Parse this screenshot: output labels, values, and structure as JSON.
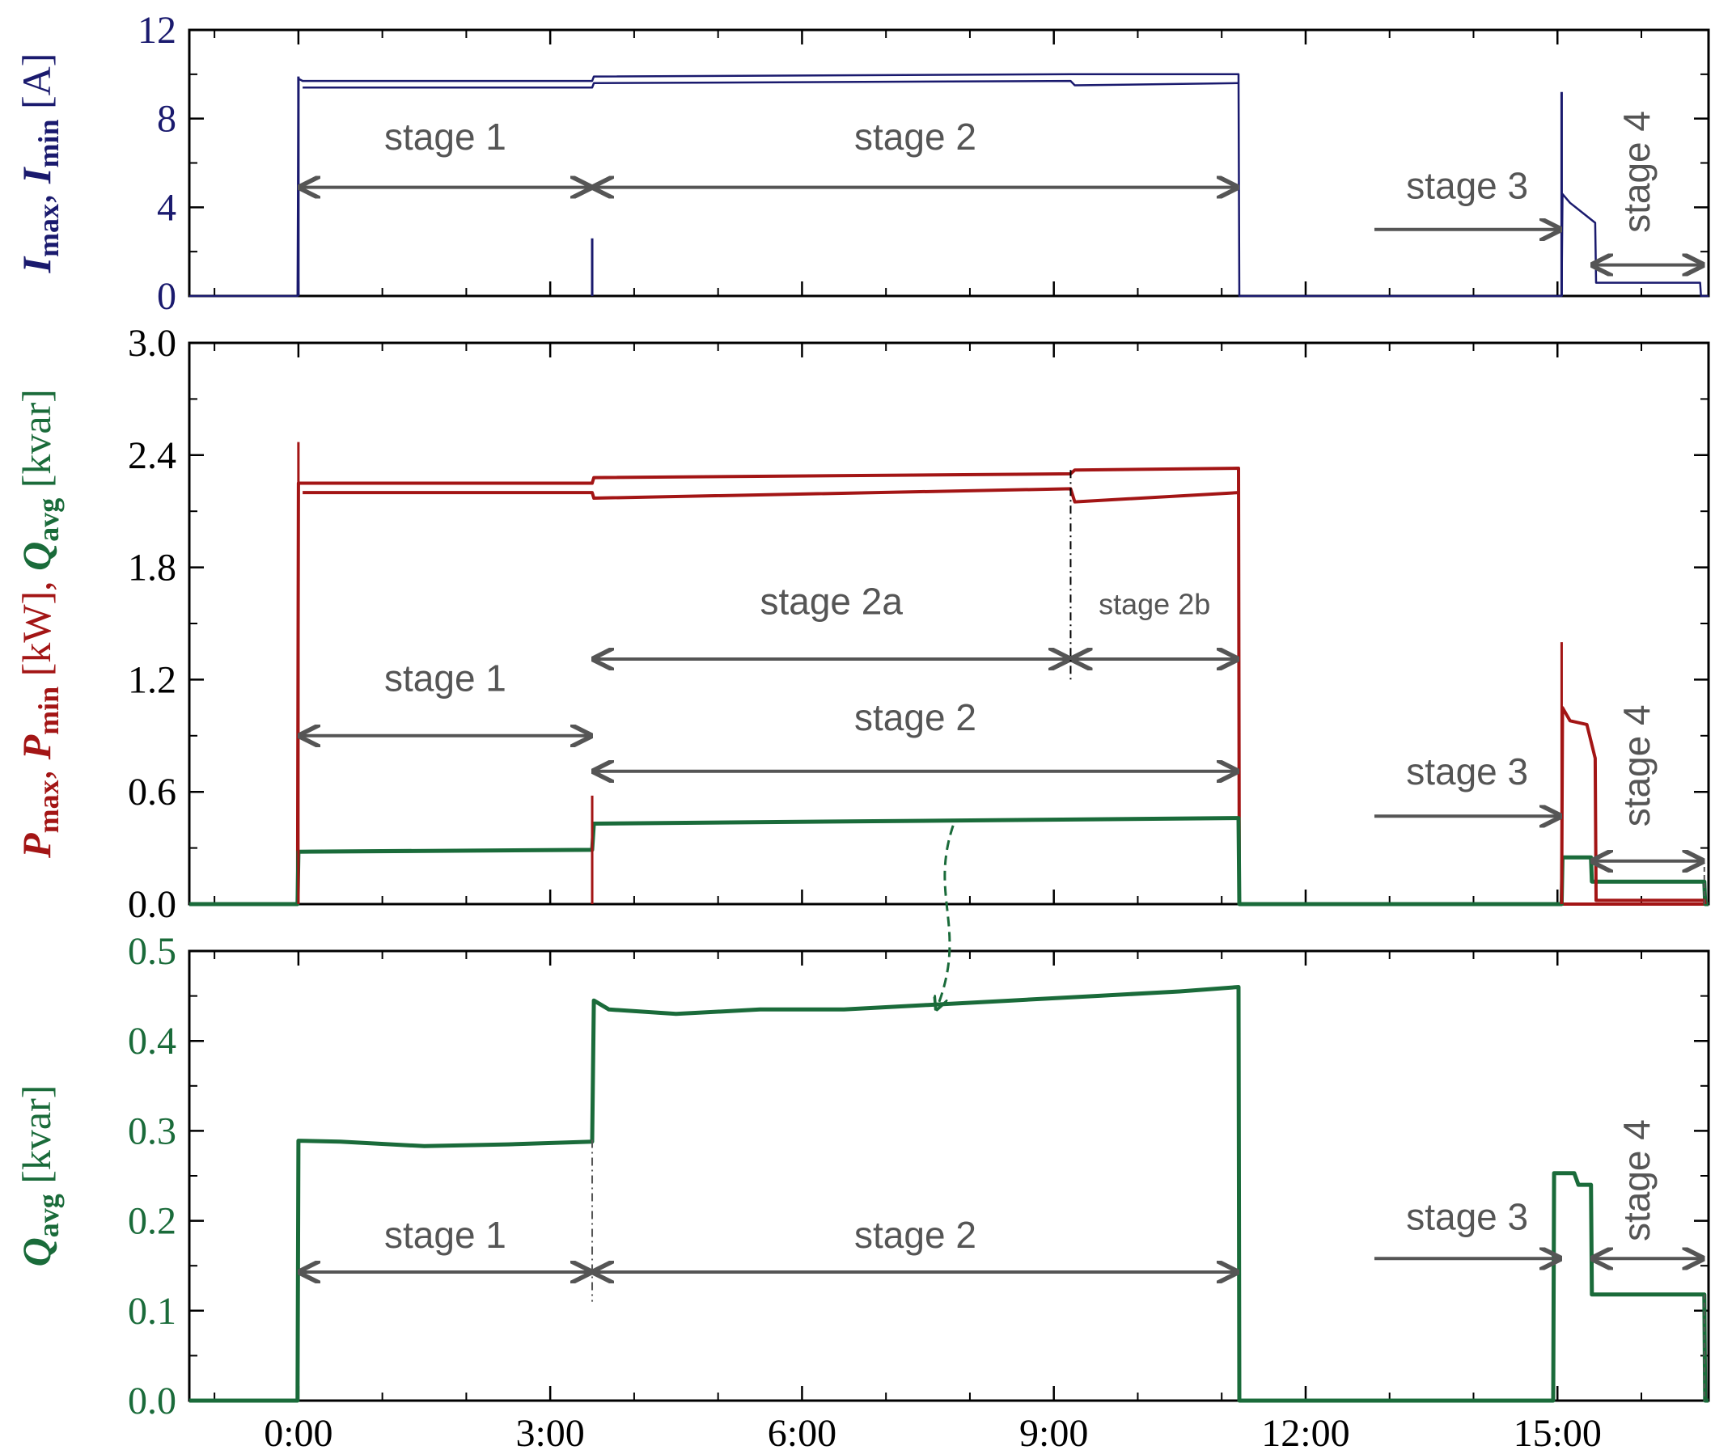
{
  "chart_data": [
    {
      "type": "line",
      "ylabel": {
        "parts": [
          {
            "t": "I",
            "k": "sym"
          },
          {
            "t": "max",
            "k": "sub"
          },
          {
            "t": ", ",
            "k": "n"
          },
          {
            "t": "I",
            "k": "sym"
          },
          {
            "t": "min",
            "k": "sub"
          },
          {
            "t": " [A]",
            "k": "n"
          }
        ]
      },
      "ylim": [
        0,
        12
      ],
      "yticks": [
        "0",
        "4",
        "8",
        "12"
      ],
      "color": "#1a1a6e",
      "series": [
        {
          "role": "max",
          "x": [
            -1.3,
            -0.01,
            0,
            0.05,
            3.5,
            3.52,
            9.2,
            11.2,
            11.21,
            11.3,
            15.05,
            15.06,
            15.15,
            15.45,
            15.46,
            16.7,
            16.71,
            16.8
          ],
          "y": [
            0,
            0,
            9.8,
            9.7,
            9.7,
            9.9,
            10.0,
            10.0,
            0,
            0,
            0,
            4.6,
            4.2,
            3.3,
            0.6,
            0.6,
            0,
            0
          ]
        },
        {
          "role": "min",
          "x": [
            0.05,
            3.5,
            3.52,
            9.2,
            9.25,
            11.2
          ],
          "y": [
            9.4,
            9.4,
            9.6,
            9.7,
            9.5,
            9.6
          ]
        }
      ],
      "spikes": [
        {
          "x": 0,
          "y": 9.9
        },
        {
          "x": 3.5,
          "y": 2.6
        },
        {
          "x": 15.05,
          "y": 9.2
        }
      ],
      "annotations": [
        {
          "label": "stage 1",
          "x0": 0,
          "x1": 3.5,
          "y_arrow": 4.9,
          "y_text": 6.6,
          "kind": "both"
        },
        {
          "label": "stage 2",
          "x0": 3.5,
          "x1": 11.2,
          "y_arrow": 4.9,
          "y_text": 6.6,
          "kind": "both"
        },
        {
          "label": "stage 3",
          "x0": 12.8,
          "x1": 15.05,
          "y_arrow": 3.0,
          "y_text": 4.4,
          "kind": "right"
        },
        {
          "label": "stage 4",
          "x0": 15.4,
          "x1": 16.75,
          "y_arrow": 1.4,
          "y_text": 5.6,
          "kind": "both",
          "rotated": true
        }
      ]
    },
    {
      "type": "line",
      "ylabel": {
        "parts": [
          {
            "t": "P",
            "k": "sym",
            "c": "#a31515"
          },
          {
            "t": "max",
            "k": "sub",
            "c": "#a31515"
          },
          {
            "t": ", ",
            "k": "n",
            "c": "#a31515"
          },
          {
            "t": "P",
            "k": "sym",
            "c": "#a31515"
          },
          {
            "t": "min",
            "k": "sub",
            "c": "#a31515"
          },
          {
            "t": " [kW], ",
            "k": "n",
            "c": "#a31515"
          },
          {
            "t": "Q",
            "k": "sym",
            "c": "#1a6b3a"
          },
          {
            "t": "avg",
            "k": "sub",
            "c": "#1a6b3a"
          },
          {
            "t": " [kvar]",
            "k": "n",
            "c": "#1a6b3a"
          }
        ]
      },
      "ylim": [
        0,
        3.0
      ],
      "yticks": [
        "0.0",
        "0.6",
        "1.2",
        "1.8",
        "2.4",
        "3.0"
      ],
      "series": [
        {
          "role": "P_max",
          "color": "#a31515",
          "x": [
            -1.3,
            -0.01,
            0,
            0.05,
            3.5,
            3.52,
            9.2,
            9.25,
            11.2,
            11.21,
            16.8
          ],
          "y": [
            0,
            0,
            2.25,
            2.25,
            2.25,
            2.28,
            2.3,
            2.32,
            2.33,
            0,
            0
          ]
        },
        {
          "role": "P_min",
          "color": "#a31515",
          "x": [
            0.05,
            3.5,
            3.52,
            9.2,
            9.25,
            11.2
          ],
          "y": [
            2.2,
            2.2,
            2.17,
            2.22,
            2.15,
            2.2
          ]
        },
        {
          "role": "Q_avg",
          "color": "#1a6b3a",
          "x": [
            -1.3,
            -0.01,
            0,
            3.5,
            3.52,
            11.2,
            11.21,
            15.05,
            15.06,
            15.4,
            15.41,
            16.75,
            16.76,
            16.8
          ],
          "y": [
            0,
            0,
            0.28,
            0.29,
            0.43,
            0.46,
            0,
            0,
            0.25,
            0.25,
            0.12,
            0.12,
            0,
            0
          ]
        },
        {
          "role": "P_stage34",
          "color": "#a31515",
          "x": [
            15.05,
            15.06,
            15.15,
            15.35,
            15.45,
            15.46,
            16.75,
            16.76
          ],
          "y": [
            0,
            1.05,
            0.98,
            0.96,
            0.78,
            0.02,
            0.02,
            0
          ]
        }
      ],
      "spikes": [
        {
          "x": 0,
          "y": 2.47,
          "color": "#a31515"
        },
        {
          "x": 3.5,
          "y": 0.58,
          "color": "#a31515"
        },
        {
          "x": 15.05,
          "y": 1.4,
          "color": "#a31515"
        }
      ],
      "annotations": [
        {
          "label": "stage 2a",
          "x0": 3.5,
          "x1": 9.2,
          "y_arrow": 1.31,
          "y_text": 1.55,
          "kind": "both"
        },
        {
          "label": "stage 2b",
          "x0": 9.2,
          "x1": 11.2,
          "y_arrow": 1.31,
          "y_text": 1.55,
          "kind": "both",
          "small": true
        },
        {
          "label": "stage 1",
          "x0": 0,
          "x1": 3.5,
          "y_arrow": 0.9,
          "y_text": 1.14,
          "kind": "both"
        },
        {
          "label": "stage 2",
          "x0": 3.5,
          "x1": 11.2,
          "y_arrow": 0.71,
          "y_text": 0.93,
          "kind": "both"
        },
        {
          "label": "stage 3",
          "x0": 12.8,
          "x1": 15.05,
          "y_arrow": 0.47,
          "y_text": 0.64,
          "kind": "right"
        },
        {
          "label": "stage 4",
          "x0": 15.4,
          "x1": 16.75,
          "y_arrow": 0.23,
          "y_text": 0.74,
          "kind": "both",
          "rotated": true
        }
      ]
    },
    {
      "type": "line",
      "ylabel": {
        "parts": [
          {
            "t": "Q",
            "k": "sym",
            "c": "#1a6b3a"
          },
          {
            "t": "avg",
            "k": "sub",
            "c": "#1a6b3a"
          },
          {
            "t": " [kvar]",
            "k": "n",
            "c": "#1a6b3a"
          }
        ]
      },
      "ylim": [
        0,
        0.5
      ],
      "yticks": [
        "0.0",
        "0.1",
        "0.2",
        "0.3",
        "0.4",
        "0.5"
      ],
      "color": "#1a6b3a",
      "series": [
        {
          "role": "Q_avg",
          "x": [
            -1.3,
            -0.01,
            0,
            0.5,
            1.5,
            2.5,
            3.5,
            3.52,
            3.7,
            4.5,
            5.5,
            6.5,
            7.5,
            8.5,
            9.5,
            10.5,
            11.2,
            11.21,
            14.95,
            14.96,
            15.2,
            15.25,
            15.4,
            15.41,
            16.75,
            16.76,
            16.8
          ],
          "y": [
            0,
            0,
            0.289,
            0.288,
            0.283,
            0.285,
            0.288,
            0.445,
            0.435,
            0.43,
            0.435,
            0.435,
            0.44,
            0.445,
            0.45,
            0.455,
            0.46,
            0,
            0,
            0.253,
            0.253,
            0.24,
            0.24,
            0.118,
            0.118,
            0,
            0
          ]
        }
      ],
      "xticks": [
        "0:00",
        "3:00",
        "6:00",
        "9:00",
        "12:00",
        "15:00"
      ],
      "xlim": [
        -1.3,
        16.8
      ],
      "annotations": [
        {
          "label": "stage 1",
          "x0": 0,
          "x1": 3.5,
          "y_arrow": 0.143,
          "y_text": 0.17,
          "kind": "both"
        },
        {
          "label": "stage 2",
          "x0": 3.5,
          "x1": 11.2,
          "y_arrow": 0.143,
          "y_text": 0.17,
          "kind": "both"
        },
        {
          "label": "stage 3",
          "x0": 12.8,
          "x1": 15.05,
          "y_arrow": 0.158,
          "y_text": 0.19,
          "kind": "right"
        },
        {
          "label": "stage 4",
          "x0": 15.4,
          "x1": 16.75,
          "y_arrow": 0.158,
          "y_text": 0.245,
          "kind": "both",
          "rotated": true
        }
      ]
    }
  ]
}
